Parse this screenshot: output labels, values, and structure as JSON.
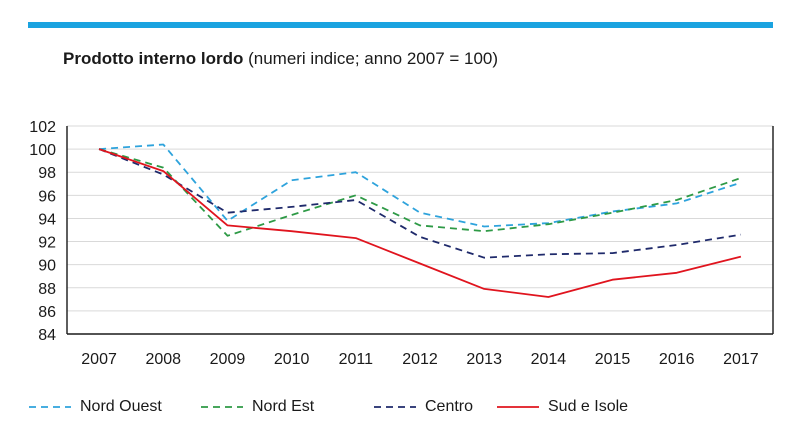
{
  "header": {
    "title_bold": "Prodotto interno lordo",
    "title_rest": " (numeri indice; anno 2007 = 100)"
  },
  "colors": {
    "accent_bar": "#1aa3e0",
    "grid": "#d9d9d9",
    "axis": "#1a1a1a"
  },
  "chart_data": {
    "type": "line",
    "title": "Prodotto interno lordo (numeri indice; anno 2007 = 100)",
    "x": [
      "2007",
      "2008",
      "2009",
      "2010",
      "2011",
      "2012",
      "2013",
      "2014",
      "2015",
      "2016",
      "2017"
    ],
    "ylim": [
      84,
      102
    ],
    "yticks": [
      84,
      86,
      88,
      90,
      92,
      94,
      96,
      98,
      100,
      102
    ],
    "grid": "horizontal",
    "legend_position": "bottom",
    "series": [
      {
        "name": "Nord Ouest",
        "color": "#2ea3dc",
        "dash": "dashed",
        "values": [
          100.0,
          100.4,
          93.8,
          97.3,
          98.0,
          94.5,
          93.3,
          93.6,
          94.6,
          95.3,
          97.1
        ]
      },
      {
        "name": "Nord Est",
        "color": "#2e9a46",
        "dash": "dashed",
        "values": [
          100.0,
          98.4,
          92.5,
          94.3,
          96.0,
          93.4,
          92.9,
          93.5,
          94.5,
          95.6,
          97.5
        ]
      },
      {
        "name": "Centro",
        "color": "#1f2a6b",
        "dash": "dashed",
        "values": [
          100.0,
          97.8,
          94.5,
          95.0,
          95.6,
          92.4,
          90.6,
          90.9,
          91.0,
          91.7,
          92.6
        ]
      },
      {
        "name": "Sud e Isole",
        "color": "#e0141e",
        "dash": "solid",
        "values": [
          100.0,
          98.1,
          93.4,
          92.9,
          92.3,
          90.1,
          87.9,
          87.2,
          88.7,
          89.3,
          90.7
        ]
      }
    ]
  }
}
